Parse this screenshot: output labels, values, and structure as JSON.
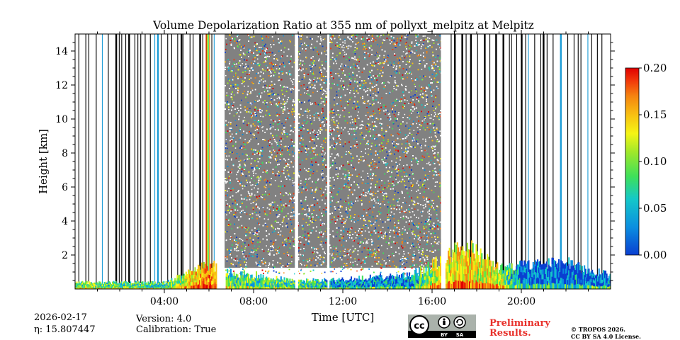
{
  "chart_data": {
    "type": "heatmap",
    "title": "Volume Depolarization Ratio at 355 nm of pollyxt_melpitz at Melpitz",
    "xlabel": "Time [UTC]",
    "ylabel": "Height [km]",
    "xlim_hours": [
      0,
      24
    ],
    "ylim_km": [
      0,
      15
    ],
    "x_ticks": [
      {
        "hour": 4,
        "label": "04:00"
      },
      {
        "hour": 8,
        "label": "08:00"
      },
      {
        "hour": 12,
        "label": "12:00"
      },
      {
        "hour": 16,
        "label": "16:00"
      },
      {
        "hour": 20,
        "label": "20:00"
      }
    ],
    "y_ticks": [
      {
        "km": 2,
        "label": "2"
      },
      {
        "km": 4,
        "label": "4"
      },
      {
        "km": 6,
        "label": "6"
      },
      {
        "km": 8,
        "label": "8"
      },
      {
        "km": 10,
        "label": "10"
      },
      {
        "km": 12,
        "label": "12"
      },
      {
        "km": 14,
        "label": "14"
      }
    ],
    "colorbar": {
      "min": 0.0,
      "max": 0.2,
      "ticks": [
        {
          "value": 0.0,
          "label": "0.00"
        },
        {
          "value": 0.05,
          "label": "0.05"
        },
        {
          "value": 0.1,
          "label": "0.10"
        },
        {
          "value": 0.15,
          "label": "0.15"
        },
        {
          "value": 0.2,
          "label": "0.20"
        }
      ],
      "colors": [
        "#0a3fd1",
        "#0b8fe0",
        "#14c8c8",
        "#3ee05a",
        "#9fe82a",
        "#f5f515",
        "#f8c012",
        "#f58410",
        "#f23a0a",
        "#e00000"
      ]
    },
    "noise_periods_hours": [
      [
        6.7,
        16.4
      ]
    ],
    "gap_periods_hours": [
      [
        6.3,
        6.7
      ],
      [
        9.85,
        10.0
      ],
      [
        11.3,
        11.4
      ],
      [
        16.4,
        16.6
      ]
    ],
    "strong_layer_hours": [
      [
        5.85,
        6.05
      ]
    ],
    "boundary_layer": [
      {
        "hour": 0.0,
        "top_km": 0.4,
        "value": 0.08
      },
      {
        "hour": 4.0,
        "top_km": 0.4,
        "value": 0.06
      },
      {
        "hour": 6.0,
        "top_km": 1.5,
        "value": 0.15
      },
      {
        "hour": 7.0,
        "top_km": 1.0,
        "value": 0.06
      },
      {
        "hour": 10.0,
        "top_km": 0.5,
        "value": 0.07
      },
      {
        "hour": 12.0,
        "top_km": 0.6,
        "value": 0.03
      },
      {
        "hour": 15.0,
        "top_km": 0.9,
        "value": 0.03
      },
      {
        "hour": 16.0,
        "top_km": 1.5,
        "value": 0.1
      },
      {
        "hour": 17.5,
        "top_km": 2.7,
        "value": 0.12
      },
      {
        "hour": 19.0,
        "top_km": 1.3,
        "value": 0.1
      },
      {
        "hour": 20.0,
        "top_km": 1.5,
        "value": 0.02
      },
      {
        "hour": 22.0,
        "top_km": 1.6,
        "value": 0.02
      },
      {
        "hour": 24.0,
        "top_km": 0.8,
        "value": 0.03
      }
    ]
  },
  "footer": {
    "date": "2026-02-17",
    "eta": "η: 15.807447",
    "version": "Version: 4.0",
    "calibration": "Calibration: True",
    "preliminary_line1": "Preliminary",
    "preliminary_line2": "Results.",
    "copyright_line1": "© TROPOS 2026.",
    "copyright_line2": "CC BY SA 4.0 License.",
    "cc_badge_labels": [
      "cc",
      "BY",
      "SA"
    ]
  }
}
